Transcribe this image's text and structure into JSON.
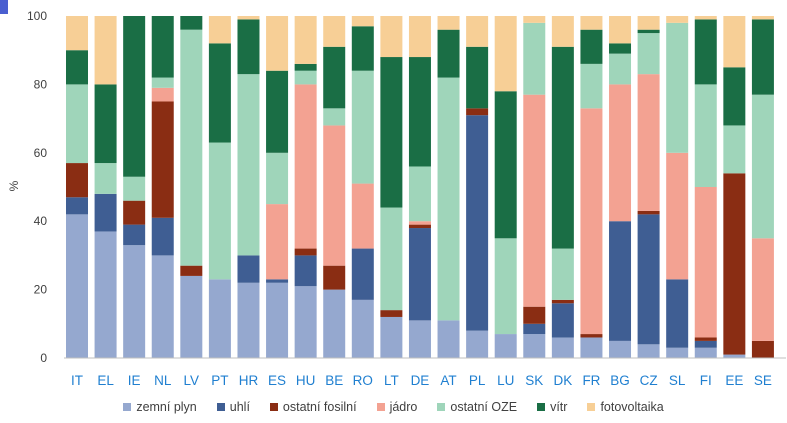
{
  "chart_data": {
    "type": "bar",
    "stacked": true,
    "ylabel": "%",
    "ylim": [
      0,
      100
    ],
    "yticks": [
      0,
      20,
      40,
      60,
      80,
      100
    ],
    "grid": false,
    "legend_position": "bottom",
    "categories": [
      "IT",
      "EL",
      "IE",
      "NL",
      "LV",
      "PT",
      "HR",
      "ES",
      "HU",
      "BE",
      "RO",
      "LT",
      "DE",
      "AT",
      "PL",
      "LU",
      "SK",
      "DK",
      "FR",
      "BG",
      "CZ",
      "SL",
      "FI",
      "EE",
      "SE"
    ],
    "series": [
      {
        "name": "zemní plyn",
        "color": "#95a8cf",
        "values": [
          42,
          37,
          33,
          30,
          24,
          23,
          22,
          22,
          21,
          20,
          17,
          12,
          11,
          11,
          8,
          7,
          7,
          6,
          6,
          5,
          4,
          3,
          3,
          1,
          0
        ]
      },
      {
        "name": "uhlí",
        "color": "#3f5e93",
        "values": [
          5,
          11,
          6,
          11,
          0,
          0,
          8,
          1,
          9,
          0,
          15,
          0,
          27,
          0,
          63,
          0,
          3,
          10,
          0,
          35,
          38,
          20,
          2,
          0,
          0
        ]
      },
      {
        "name": "ostatní fosilní",
        "color": "#8a2d13",
        "values": [
          10,
          0,
          7,
          34,
          3,
          0,
          0,
          0,
          2,
          7,
          0,
          2,
          1,
          0,
          2,
          0,
          5,
          1,
          1,
          0,
          1,
          0,
          1,
          53,
          5
        ]
      },
      {
        "name": "jádro",
        "color": "#f3a292",
        "values": [
          0,
          0,
          0,
          4,
          0,
          0,
          0,
          22,
          48,
          41,
          19,
          0,
          1,
          0,
          0,
          0,
          62,
          0,
          66,
          40,
          40,
          37,
          44,
          0,
          30
        ]
      },
      {
        "name": "ostatní OZE",
        "color": "#9fd5ba",
        "values": [
          23,
          9,
          7,
          3,
          69,
          40,
          53,
          15,
          4,
          5,
          33,
          30,
          16,
          71,
          0,
          28,
          21,
          15,
          13,
          9,
          12,
          38,
          30,
          14,
          42
        ]
      },
      {
        "name": "vítr",
        "color": "#1a6e45",
        "values": [
          10,
          23,
          47,
          18,
          4,
          29,
          16,
          24,
          2,
          18,
          13,
          44,
          32,
          14,
          18,
          43,
          0,
          59,
          10,
          3,
          1,
          0,
          19,
          17,
          22
        ]
      },
      {
        "name": "fotovoltaika",
        "color": "#f7cf96",
        "values": [
          10,
          20,
          0,
          0,
          0,
          8,
          1,
          16,
          14,
          9,
          3,
          12,
          12,
          4,
          9,
          22,
          2,
          9,
          4,
          8,
          4,
          2,
          1,
          15,
          1
        ]
      }
    ]
  }
}
